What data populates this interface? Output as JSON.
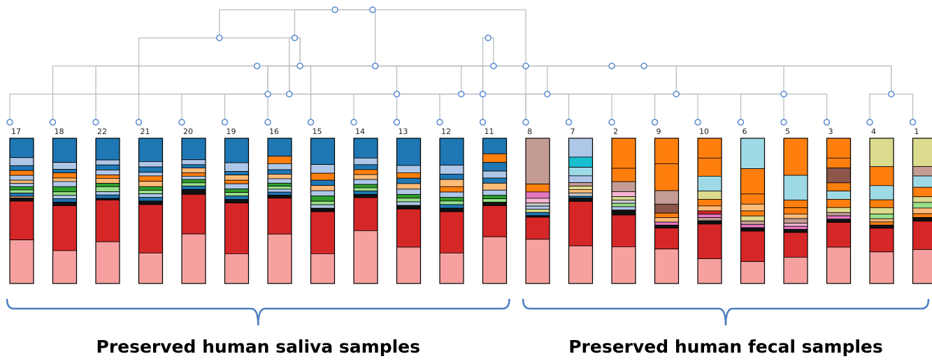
{
  "colors": {
    "edge": "#b8bcc2",
    "node_stroke": "#5b8bd0",
    "bar_border": "#000000",
    "brace": "#4a7fc0"
  },
  "dendrogram": {
    "leaves": [
      "17",
      "18",
      "22",
      "21",
      "20",
      "19",
      "16",
      "15",
      "14",
      "13",
      "12",
      "11",
      "8",
      "7",
      "2",
      "9",
      "10",
      "6",
      "5",
      "3",
      "4",
      "1"
    ],
    "merges": [
      [
        4,
        9
      ],
      [
        5,
        7
      ],
      [
        10,
        11
      ],
      [
        12,
        13
      ],
      [
        21,
        20
      ],
      [
        8,
        14
      ],
      [
        7,
        22
      ],
      [
        16,
        15
      ],
      [
        19,
        17
      ],
      [
        2,
        26
      ],
      [
        0,
        18
      ],
      [
        3,
        28
      ],
      [
        23,
        27
      ],
      [
        28,
        22
      ],
      [
        1,
        24
      ],
      [
        25,
        29
      ],
      [
        6,
        30
      ],
      [
        31,
        11
      ],
      [
        32,
        26
      ],
      [
        33,
        12
      ],
      [
        34,
        35
      ]
    ]
  },
  "bars": [
    {
      "leaf": "17",
      "segments": [
        [
          "#1f77b4",
          0.12
        ],
        [
          "#aec7e8",
          0.05
        ],
        [
          "#1f77b4",
          0.03
        ],
        [
          "#ff7f0e",
          0.03
        ],
        [
          "#aec7e8",
          0.03
        ],
        [
          "#ffbb78",
          0.02
        ],
        [
          "#aec7e8",
          0.02
        ],
        [
          "#2ca02c",
          0.02
        ],
        [
          "#98df8a",
          0.02
        ],
        [
          "#1f77b4",
          0.02
        ],
        [
          "#ffbb78",
          0.01
        ],
        [
          "#111111",
          0.02
        ],
        [
          "#d62728",
          0.24
        ],
        [
          "#f7a0a0",
          0.27
        ]
      ]
    },
    {
      "leaf": "18",
      "segments": [
        [
          "#1f77b4",
          0.14
        ],
        [
          "#aec7e8",
          0.04
        ],
        [
          "#1f77b4",
          0.02
        ],
        [
          "#ff7f0e",
          0.03
        ],
        [
          "#ffbb78",
          0.02
        ],
        [
          "#aec7e8",
          0.03
        ],
        [
          "#2ca02c",
          0.03
        ],
        [
          "#98df8a",
          0.02
        ],
        [
          "#aec7e8",
          0.02
        ],
        [
          "#1f77b4",
          0.02
        ],
        [
          "#111111",
          0.02
        ],
        [
          "#d62728",
          0.26
        ],
        [
          "#f7a0a0",
          0.19
        ]
      ]
    },
    {
      "leaf": "22",
      "segments": [
        [
          "#1f77b4",
          0.13
        ],
        [
          "#aec7e8",
          0.03
        ],
        [
          "#1f77b4",
          0.03
        ],
        [
          "#aec7e8",
          0.03
        ],
        [
          "#ff7f0e",
          0.02
        ],
        [
          "#ffbb78",
          0.03
        ],
        [
          "#2ca02c",
          0.02
        ],
        [
          "#98df8a",
          0.03
        ],
        [
          "#aec7e8",
          0.02
        ],
        [
          "#1f77b4",
          0.02
        ],
        [
          "#111111",
          0.01
        ],
        [
          "#d62728",
          0.25
        ],
        [
          "#f7a0a0",
          0.25
        ]
      ]
    },
    {
      "leaf": "21",
      "segments": [
        [
          "#1f77b4",
          0.13
        ],
        [
          "#aec7e8",
          0.03
        ],
        [
          "#1f77b4",
          0.03
        ],
        [
          "#aec7e8",
          0.02
        ],
        [
          "#ff7f0e",
          0.03
        ],
        [
          "#ffbb78",
          0.03
        ],
        [
          "#2ca02c",
          0.02
        ],
        [
          "#98df8a",
          0.02
        ],
        [
          "#aec7e8",
          0.02
        ],
        [
          "#1f77b4",
          0.02
        ],
        [
          "#111111",
          0.02
        ],
        [
          "#d62728",
          0.27
        ],
        [
          "#f7a0a0",
          0.17
        ]
      ]
    },
    {
      "leaf": "20",
      "segments": [
        [
          "#1f77b4",
          0.13
        ],
        [
          "#aec7e8",
          0.03
        ],
        [
          "#1f77b4",
          0.02
        ],
        [
          "#ffbb78",
          0.03
        ],
        [
          "#ff7f0e",
          0.02
        ],
        [
          "#aec7e8",
          0.02
        ],
        [
          "#2ca02c",
          0.02
        ],
        [
          "#98df8a",
          0.02
        ],
        [
          "#1f77b4",
          0.02
        ],
        [
          "#111111",
          0.03
        ],
        [
          "#d62728",
          0.24
        ],
        [
          "#f7a0a0",
          0.3
        ]
      ]
    },
    {
      "leaf": "19",
      "segments": [
        [
          "#1f77b4",
          0.14
        ],
        [
          "#aec7e8",
          0.05
        ],
        [
          "#1f77b4",
          0.02
        ],
        [
          "#ffbb78",
          0.03
        ],
        [
          "#ff7f0e",
          0.02
        ],
        [
          "#aec7e8",
          0.03
        ],
        [
          "#2ca02c",
          0.02
        ],
        [
          "#98df8a",
          0.02
        ],
        [
          "#1f77b4",
          0.02
        ],
        [
          "#111111",
          0.02
        ],
        [
          "#d62728",
          0.29
        ],
        [
          "#f7a0a0",
          0.17
        ]
      ]
    },
    {
      "leaf": "16",
      "segments": [
        [
          "#1f77b4",
          0.12
        ],
        [
          "#ff7f0e",
          0.05
        ],
        [
          "#aec7e8",
          0.04
        ],
        [
          "#1f77b4",
          0.03
        ],
        [
          "#ffbb78",
          0.03
        ],
        [
          "#aec7e8",
          0.03
        ],
        [
          "#2ca02c",
          0.02
        ],
        [
          "#98df8a",
          0.02
        ],
        [
          "#aec7e8",
          0.02
        ],
        [
          "#1f77b4",
          0.02
        ],
        [
          "#111111",
          0.02
        ],
        [
          "#d62728",
          0.24
        ],
        [
          "#f7a0a0",
          0.33
        ]
      ]
    },
    {
      "leaf": "15",
      "segments": [
        [
          "#1f77b4",
          0.15
        ],
        [
          "#aec7e8",
          0.05
        ],
        [
          "#ff7f0e",
          0.04
        ],
        [
          "#1f77b4",
          0.03
        ],
        [
          "#ffbb78",
          0.03
        ],
        [
          "#aec7e8",
          0.03
        ],
        [
          "#2ca02c",
          0.03
        ],
        [
          "#98df8a",
          0.02
        ],
        [
          "#aec7e8",
          0.02
        ],
        [
          "#111111",
          0.02
        ],
        [
          "#d62728",
          0.24
        ],
        [
          "#f7a0a0",
          0.17
        ]
      ]
    },
    {
      "leaf": "14",
      "segments": [
        [
          "#1f77b4",
          0.12
        ],
        [
          "#aec7e8",
          0.04
        ],
        [
          "#1f77b4",
          0.03
        ],
        [
          "#ff7f0e",
          0.03
        ],
        [
          "#ffbb78",
          0.03
        ],
        [
          "#aec7e8",
          0.03
        ],
        [
          "#2ca02c",
          0.02
        ],
        [
          "#98df8a",
          0.02
        ],
        [
          "#1f77b4",
          0.02
        ],
        [
          "#111111",
          0.02
        ],
        [
          "#d62728",
          0.2
        ],
        [
          "#f7a0a0",
          0.32
        ]
      ]
    },
    {
      "leaf": "13",
      "segments": [
        [
          "#1f77b4",
          0.15
        ],
        [
          "#aec7e8",
          0.04
        ],
        [
          "#ff7f0e",
          0.03
        ],
        [
          "#1f77b4",
          0.03
        ],
        [
          "#ffbb78",
          0.03
        ],
        [
          "#aec7e8",
          0.03
        ],
        [
          "#2ca02c",
          0.02
        ],
        [
          "#98df8a",
          0.02
        ],
        [
          "#aec7e8",
          0.02
        ],
        [
          "#111111",
          0.02
        ],
        [
          "#d62728",
          0.21
        ],
        [
          "#f7a0a0",
          0.2
        ]
      ]
    },
    {
      "leaf": "12",
      "segments": [
        [
          "#1f77b4",
          0.15
        ],
        [
          "#aec7e8",
          0.05
        ],
        [
          "#1f77b4",
          0.03
        ],
        [
          "#ffbb78",
          0.04
        ],
        [
          "#ff7f0e",
          0.03
        ],
        [
          "#aec7e8",
          0.03
        ],
        [
          "#2ca02c",
          0.02
        ],
        [
          "#98df8a",
          0.02
        ],
        [
          "#1f77b4",
          0.02
        ],
        [
          "#111111",
          0.02
        ],
        [
          "#d62728",
          0.23
        ],
        [
          "#f7a0a0",
          0.17
        ]
      ]
    },
    {
      "leaf": "11",
      "segments": [
        [
          "#1f77b4",
          0.09
        ],
        [
          "#ff7f0e",
          0.05
        ],
        [
          "#1f77b4",
          0.05
        ],
        [
          "#aec7e8",
          0.04
        ],
        [
          "#1f77b4",
          0.03
        ],
        [
          "#ffbb78",
          0.04
        ],
        [
          "#aec7e8",
          0.03
        ],
        [
          "#2ca02c",
          0.02
        ],
        [
          "#98df8a",
          0.02
        ],
        [
          "#111111",
          0.02
        ],
        [
          "#d62728",
          0.18
        ],
        [
          "#f7a0a0",
          0.27
        ]
      ]
    },
    {
      "leaf": "8",
      "segments": [
        [
          "#c49c94",
          0.29
        ],
        [
          "#ff7f0e",
          0.05
        ],
        [
          "#e377c2",
          0.04
        ],
        [
          "#f7b6d2",
          0.03
        ],
        [
          "#c7c7c7",
          0.02
        ],
        [
          "#aec7e8",
          0.02
        ],
        [
          "#dbdb8d",
          0.02
        ],
        [
          "#1f77b4",
          0.02
        ],
        [
          "#111111",
          0.01
        ],
        [
          "#d62728",
          0.14
        ],
        [
          "#f7a0a0",
          0.28
        ]
      ]
    },
    {
      "leaf": "7",
      "segments": [
        [
          "#aec7e8",
          0.11
        ],
        [
          "#17becf",
          0.06
        ],
        [
          "#9edae5",
          0.05
        ],
        [
          "#aec7e8",
          0.04
        ],
        [
          "#c49c94",
          0.02
        ],
        [
          "#dbdb8d",
          0.02
        ],
        [
          "#ffbb78",
          0.02
        ],
        [
          "#c7c7c7",
          0.02
        ],
        [
          "#1f77b4",
          0.01
        ],
        [
          "#111111",
          0.02
        ],
        [
          "#d62728",
          0.26
        ],
        [
          "#f7a0a0",
          0.22
        ]
      ]
    },
    {
      "leaf": "2",
      "segments": [
        [
          "#ff7f0e",
          0.18
        ],
        [
          "#ff7f0e",
          0.08
        ],
        [
          "#c49c94",
          0.06
        ],
        [
          "#f7b6d2",
          0.03
        ],
        [
          "#dbdb8d",
          0.02
        ],
        [
          "#c7c7c7",
          0.02
        ],
        [
          "#98df8a",
          0.02
        ],
        [
          "#aec7e8",
          0.02
        ],
        [
          "#111111",
          0.03
        ],
        [
          "#d62728",
          0.19
        ],
        [
          "#f7a0a0",
          0.22
        ]
      ]
    },
    {
      "leaf": "9",
      "segments": [
        [
          "#ff7f0e",
          0.17
        ],
        [
          "#ff7f0e",
          0.18
        ],
        [
          "#c49c94",
          0.09
        ],
        [
          "#8c564b",
          0.06
        ],
        [
          "#ff7f0e",
          0.03
        ],
        [
          "#ffbb78",
          0.03
        ],
        [
          "#e377c2",
          0.02
        ],
        [
          "#111111",
          0.02
        ],
        [
          "#d62728",
          0.14
        ],
        [
          "#f7a0a0",
          0.23
        ]
      ]
    },
    {
      "leaf": "10",
      "segments": [
        [
          "#ff7f0e",
          0.12
        ],
        [
          "#ff7f0e",
          0.11
        ],
        [
          "#9edae5",
          0.09
        ],
        [
          "#dbdb8d",
          0.05
        ],
        [
          "#ff7f0e",
          0.04
        ],
        [
          "#ffbb78",
          0.03
        ],
        [
          "#d62728",
          0.02
        ],
        [
          "#e377c2",
          0.02
        ],
        [
          "#c49c94",
          0.02
        ],
        [
          "#111111",
          0.02
        ],
        [
          "#d62728",
          0.21
        ],
        [
          "#f7a0a0",
          0.15
        ]
      ]
    },
    {
      "leaf": "6",
      "segments": [
        [
          "#9edae5",
          0.18
        ],
        [
          "#ff7f0e",
          0.15
        ],
        [
          "#ff7f0e",
          0.06
        ],
        [
          "#ffbb78",
          0.04
        ],
        [
          "#ff7f0e",
          0.03
        ],
        [
          "#dbdb8d",
          0.03
        ],
        [
          "#c49c94",
          0.02
        ],
        [
          "#e377c2",
          0.02
        ],
        [
          "#111111",
          0.02
        ],
        [
          "#d62728",
          0.18
        ],
        [
          "#f7a0a0",
          0.13
        ]
      ]
    },
    {
      "leaf": "5",
      "segments": [
        [
          "#ff7f0e",
          0.24
        ],
        [
          "#9edae5",
          0.16
        ],
        [
          "#ff7f0e",
          0.05
        ],
        [
          "#ff7f0e",
          0.04
        ],
        [
          "#ffbb78",
          0.03
        ],
        [
          "#c49c94",
          0.03
        ],
        [
          "#f7b6d2",
          0.02
        ],
        [
          "#e377c2",
          0.02
        ],
        [
          "#111111",
          0.02
        ],
        [
          "#d62728",
          0.16
        ],
        [
          "#f7a0a0",
          0.17
        ]
      ]
    },
    {
      "leaf": "3",
      "segments": [
        [
          "#ff7f0e",
          0.12
        ],
        [
          "#ff7f0e",
          0.06
        ],
        [
          "#8c564b",
          0.09
        ],
        [
          "#ff7f0e",
          0.05
        ],
        [
          "#9edae5",
          0.05
        ],
        [
          "#ff7f0e",
          0.05
        ],
        [
          "#dbdb8d",
          0.03
        ],
        [
          "#c49c94",
          0.02
        ],
        [
          "#e377c2",
          0.02
        ],
        [
          "#111111",
          0.02
        ],
        [
          "#d62728",
          0.15
        ],
        [
          "#f7a0a0",
          0.22
        ]
      ]
    },
    {
      "leaf": "4",
      "segments": [
        [
          "#dbdb8d",
          0.18
        ],
        [
          "#ff7f0e",
          0.12
        ],
        [
          "#9edae5",
          0.09
        ],
        [
          "#ff7f0e",
          0.05
        ],
        [
          "#dbdb8d",
          0.04
        ],
        [
          "#98df8a",
          0.03
        ],
        [
          "#ffbb78",
          0.02
        ],
        [
          "#ff7f0e",
          0.02
        ],
        [
          "#111111",
          0.02
        ],
        [
          "#d62728",
          0.15
        ],
        [
          "#f7a0a0",
          0.2
        ]
      ]
    },
    {
      "leaf": "1",
      "segments": [
        [
          "#dbdb8d",
          0.15
        ],
        [
          "#c49c94",
          0.05
        ],
        [
          "#9edae5",
          0.06
        ],
        [
          "#ff7f0e",
          0.05
        ],
        [
          "#dbdb8d",
          0.03
        ],
        [
          "#98df8a",
          0.03
        ],
        [
          "#ffbb78",
          0.03
        ],
        [
          "#ff7f0e",
          0.02
        ],
        [
          "#111111",
          0.02
        ],
        [
          "#d62728",
          0.15
        ],
        [
          "#f7a0a0",
          0.18
        ]
      ]
    }
  ],
  "groups": [
    {
      "label": "Preserved human saliva samples",
      "first_leaf": 0,
      "last_leaf": 11
    },
    {
      "label": "Preserved human fecal samples",
      "first_leaf": 12,
      "last_leaf": 21
    }
  ]
}
